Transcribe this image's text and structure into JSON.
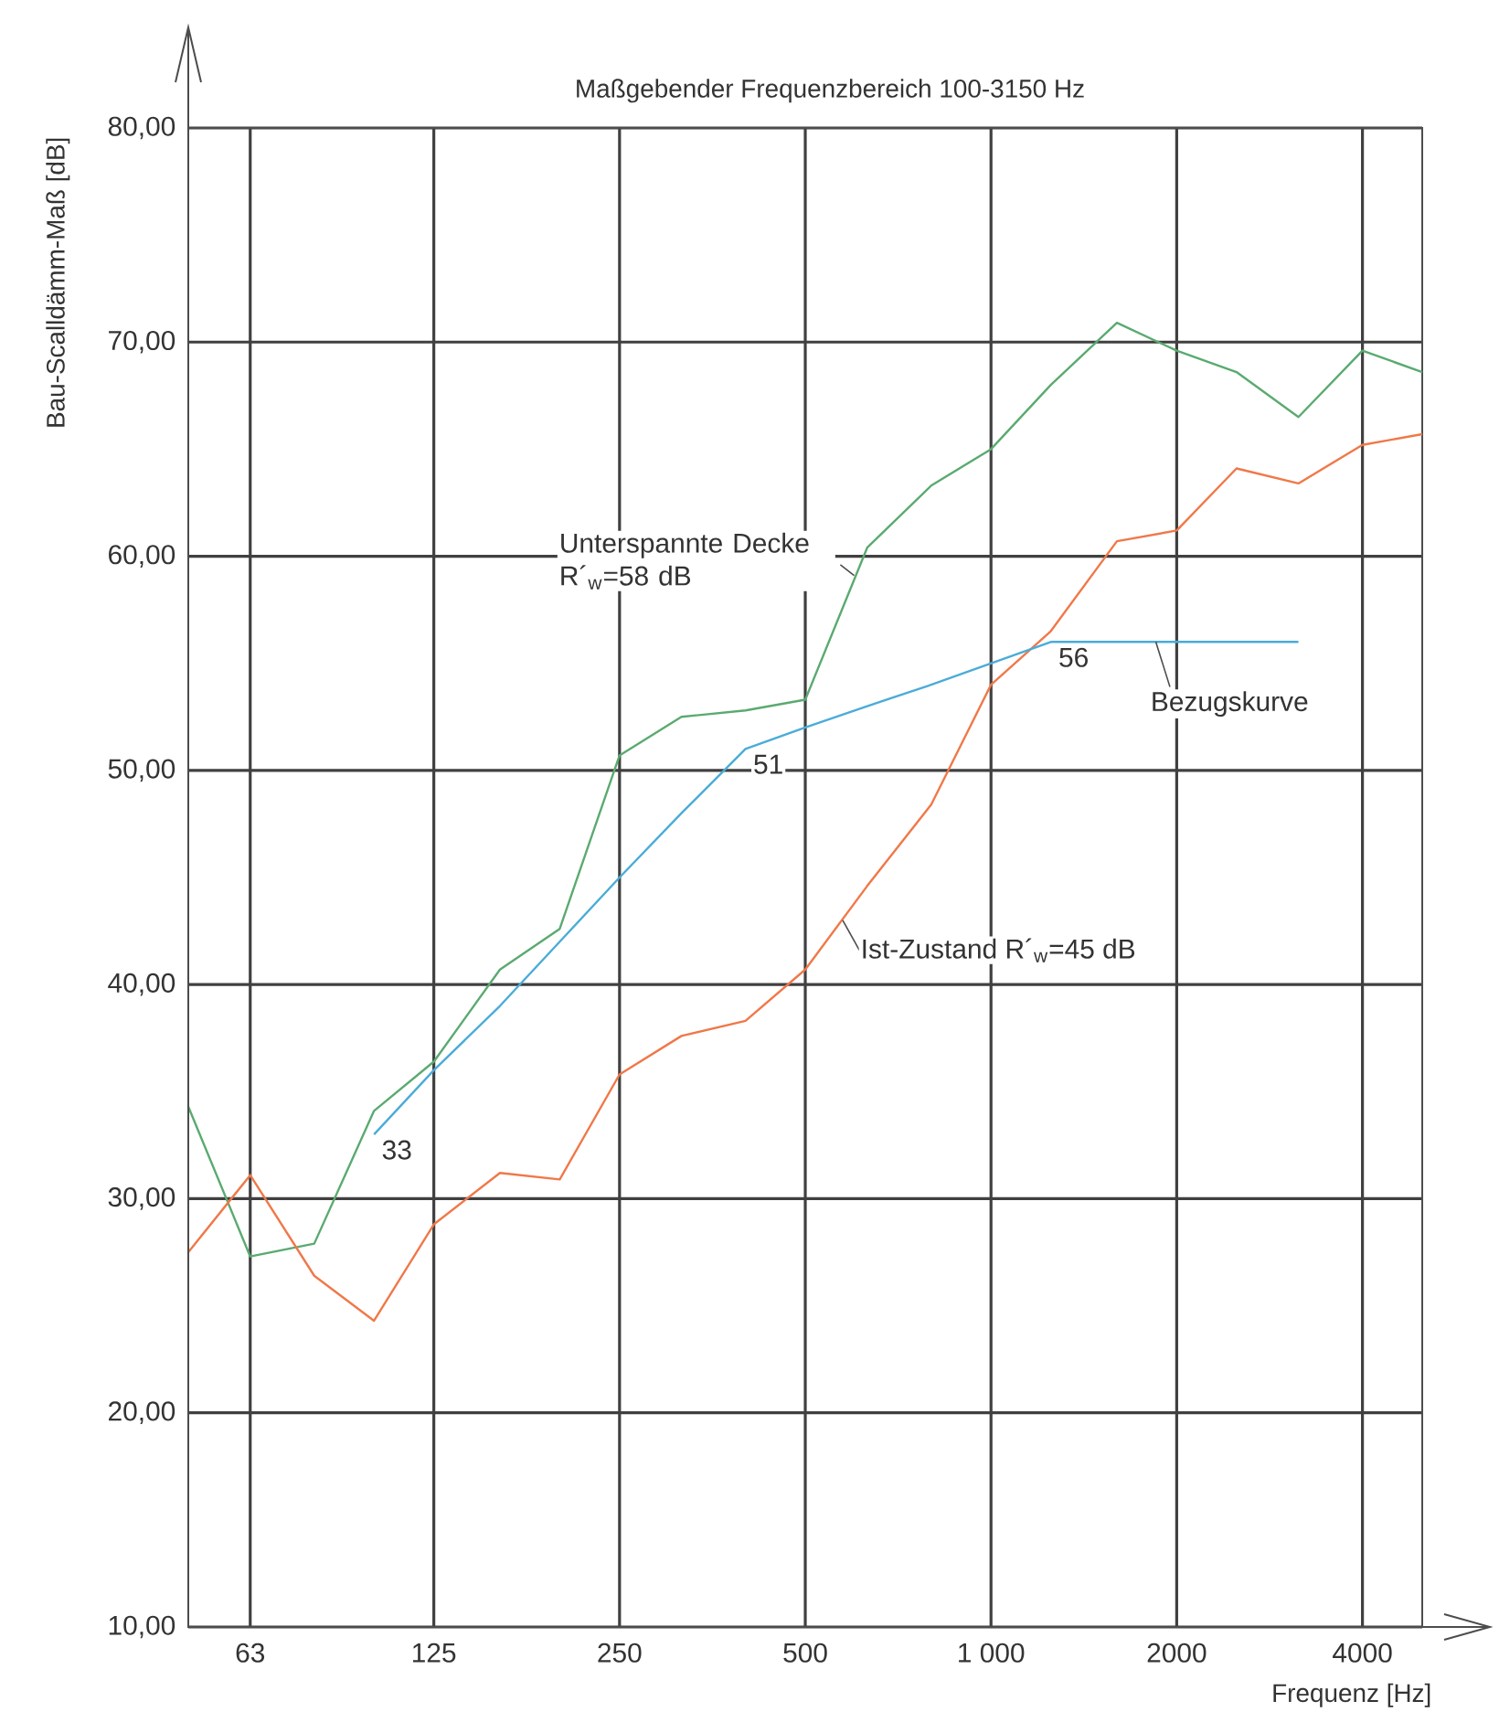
{
  "chart_data": {
    "type": "line",
    "title": "Maßgebender Frequenzbereich 100-3150 Hz",
    "xlabel": "Frequenz [Hz]",
    "ylabel": "Bau-Scalldämm-Maß [dB]",
    "log": "x",
    "xlim": [
      50,
      5000
    ],
    "ylim": [
      10,
      80
    ],
    "xticks": [
      63,
      125,
      250,
      500,
      {
        "value": 1000,
        "label": "1 000"
      },
      2000,
      4000
    ],
    "yticks": [
      {
        "value": 10,
        "label": "10,00"
      },
      {
        "value": 20,
        "label": "20,00"
      },
      {
        "value": 30,
        "label": "30,00"
      },
      {
        "value": 40,
        "label": "40,00"
      },
      {
        "value": 50,
        "label": "50,00"
      },
      {
        "value": 60,
        "label": "60,00"
      },
      {
        "value": 70,
        "label": "70,00"
      },
      {
        "value": 80,
        "label": "80,00"
      }
    ],
    "grid": true,
    "marker": "none",
    "line_style": "solid",
    "series": [
      {
        "name": "Unterspannte Decke R´$_{w}$=58 dB",
        "color": "#5aaa70",
        "x": [
          50,
          63,
          80,
          100,
          125,
          160,
          200,
          250,
          315,
          400,
          500,
          630,
          800,
          1000,
          1250,
          1600,
          2000,
          2500,
          3150,
          4000,
          5000
        ],
        "values": [
          34.3,
          27.3,
          27.9,
          34.1,
          36.4,
          40.7,
          42.6,
          50.7,
          52.5,
          52.8,
          53.3,
          60.4,
          63.3,
          65.0,
          68.0,
          70.9,
          69.6,
          68.6,
          66.5,
          69.6,
          68.6
        ]
      },
      {
        "name": "Ist-Zustand R´$_{w}$=45 dB",
        "color": "#f07848",
        "x": [
          50,
          63,
          80,
          100,
          125,
          160,
          200,
          250,
          315,
          400,
          500,
          630,
          800,
          1000,
          1250,
          1600,
          2000,
          2500,
          3150,
          4000,
          5000
        ],
        "values": [
          27.5,
          31.1,
          26.4,
          24.3,
          28.8,
          31.2,
          30.9,
          35.8,
          37.6,
          38.3,
          40.7,
          44.6,
          48.4,
          54.0,
          56.5,
          60.7,
          61.2,
          64.1,
          63.4,
          65.2,
          65.7
        ]
      },
      {
        "name": "Bezugskurve",
        "color": "#4aacd8",
        "x": [
          100,
          125,
          160,
          200,
          250,
          315,
          400,
          500,
          630,
          800,
          1000,
          1250,
          1600,
          2000,
          2500,
          3150
        ],
        "values": [
          33,
          36,
          39,
          42,
          45,
          48,
          51,
          52,
          53,
          54,
          55,
          56,
          56,
          56,
          56,
          56
        ]
      }
    ],
    "annotations": [
      {
        "text": "33",
        "x": 100,
        "y": 33
      },
      {
        "text": "51",
        "x": 400,
        "y": 51
      },
      {
        "text": "56",
        "x": 1250,
        "y": 56
      }
    ]
  }
}
